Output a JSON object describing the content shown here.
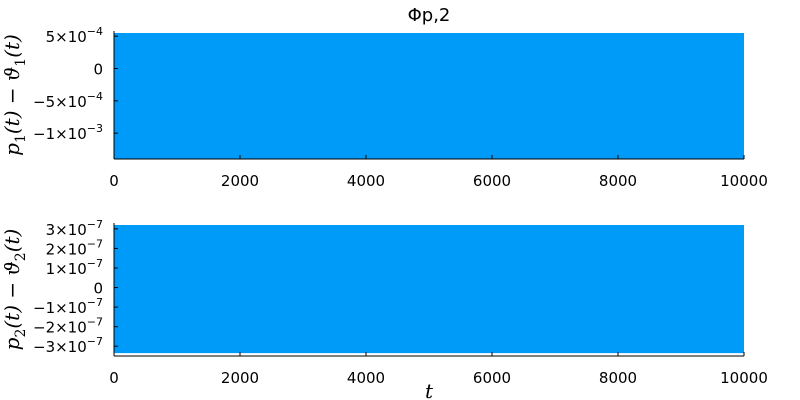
{
  "chart_data": [
    {
      "type": "area",
      "title": "Φp,2",
      "xlabel": "",
      "ylabel": "p1(t) − ϑ1(t)",
      "xlim": [
        0,
        10000
      ],
      "ylim": [
        -0.0014,
        0.00058
      ],
      "x_ticks": [
        0,
        2000,
        4000,
        6000,
        8000,
        10000
      ],
      "x_tick_labels": [
        "0",
        "2000",
        "4000",
        "6000",
        "8000",
        "10000"
      ],
      "y_ticks": [
        0.0005,
        0,
        -0.0005,
        -0.001
      ],
      "y_tick_labels": [
        "5×10−4",
        "0",
        "−5×10−4",
        "−1×10−3"
      ],
      "grid": false,
      "series": [
        {
          "color": "#009af9",
          "x": [
            0,
            10000
          ],
          "y_upper": [
            0.00055,
            0.00055
          ],
          "y_lower": [
            -0.0014,
            -0.0014
          ]
        }
      ]
    },
    {
      "type": "area",
      "title": "",
      "xlabel": "t",
      "ylabel": "p2(t) − ϑ2(t)",
      "xlim": [
        0,
        10000
      ],
      "ylim": [
        -3.5e-07,
        3.3e-07
      ],
      "x_ticks": [
        0,
        2000,
        4000,
        6000,
        8000,
        10000
      ],
      "x_tick_labels": [
        "0",
        "2000",
        "4000",
        "6000",
        "8000",
        "10000"
      ],
      "y_ticks": [
        3e-07,
        2e-07,
        1e-07,
        0,
        -1e-07,
        -2e-07,
        -3e-07
      ],
      "y_tick_labels": [
        "3×10−7",
        "2×10−7",
        "1×10−7",
        "0",
        "−1×10−7",
        "−2×10−7",
        "−3×10−7"
      ],
      "grid": false,
      "series": [
        {
          "color": "#009af9",
          "x": [
            0,
            10000
          ],
          "y_upper": [
            3.2e-07,
            3.2e-07
          ],
          "y_lower": [
            -3.35e-07,
            -3.35e-07
          ]
        }
      ]
    }
  ]
}
